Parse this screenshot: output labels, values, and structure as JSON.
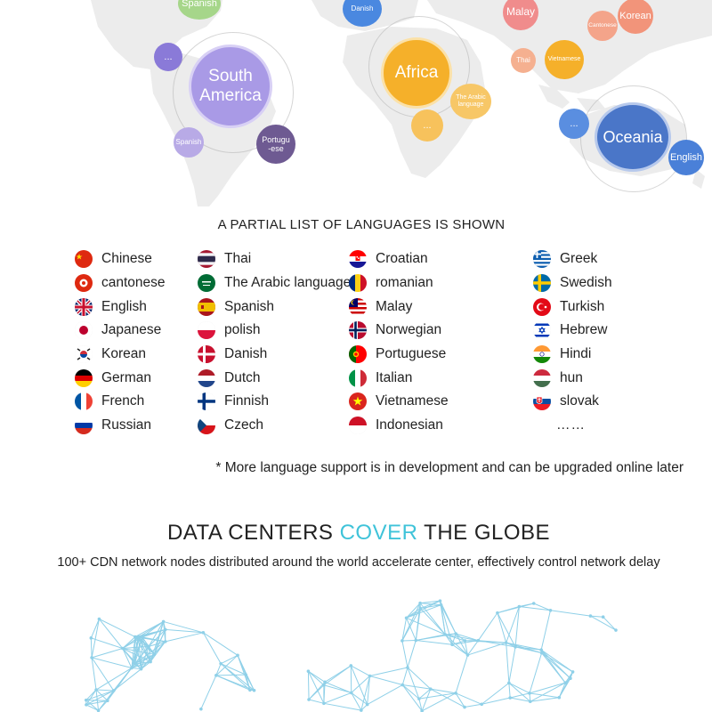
{
  "map": {
    "regions": {
      "south_america": "South\nAmerica",
      "africa": "Africa",
      "oceania": "Oceania"
    },
    "bubbles": {
      "spanish_top": "Spanish",
      "danish": "Danish",
      "malay": "Malay",
      "korean": "Korean",
      "cantonese": "Cantonese",
      "thai": "Thai",
      "vietnamese": "Vietnamese",
      "arabic": "The Arabic language",
      "africa_more": "...",
      "sa_more": "...",
      "spanish_sa": "Spanish",
      "portuguese": "Portugu\n-ese",
      "oceania_more": "...",
      "english": "English"
    }
  },
  "languages": {
    "header": "A PARTIAL LIST OF LANGUAGES IS SHOWN",
    "col1": [
      "Chinese",
      "cantonese",
      "English",
      "Japanese",
      "Korean",
      "German",
      "French",
      "Russian"
    ],
    "col2": [
      "Thai",
      "The Arabic language",
      "Spanish",
      "polish",
      "Danish",
      "Dutch",
      "Finnish",
      "Czech"
    ],
    "col3": [
      "Croatian",
      "romanian",
      "Malay",
      "Norwegian",
      "Portuguese",
      "Italian",
      "Vietnamese",
      "Indonesian"
    ],
    "col4": [
      "Greek",
      "Swedish",
      "Turkish",
      "Hebrew",
      "Hindi",
      "hun",
      "slovak"
    ],
    "more": "……",
    "note": "* More language support is in development and can be upgraded online later"
  },
  "datacenter": {
    "title_part1": "DATA CENTERS ",
    "title_highlight": "COVER",
    "title_part2": " THE GLOBE",
    "subtitle": "100+ CDN network nodes distributed around the world accelerate center, effectively control network delay"
  },
  "colors": {
    "highlight": "#3fc3d9",
    "south_america": "#a99ae6",
    "africa": "#f5b02a",
    "oceania": "#4a76c8",
    "network": "#8fd0e8"
  }
}
